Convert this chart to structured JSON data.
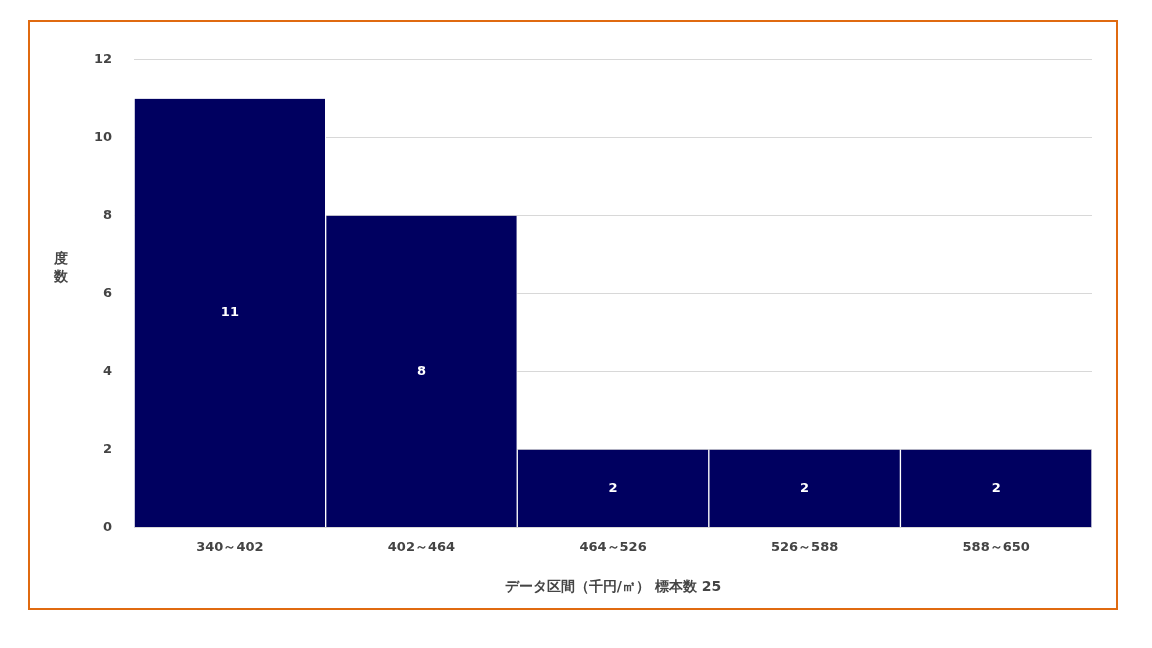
{
  "chart_data": {
    "type": "bar",
    "xlabel": "データ区間（千円/㎡） 標本数 25",
    "ylabel": "度数",
    "categories": [
      "340～402",
      "402～464",
      "464～526",
      "526～588",
      "588～650"
    ],
    "values": [
      11,
      8,
      2,
      2,
      2
    ],
    "color": "#000060",
    "ylim": [
      0,
      12
    ],
    "yticks": [
      0,
      2,
      4,
      6,
      8,
      10,
      12
    ],
    "grid": "y",
    "data_labels": true,
    "legend": false
  }
}
